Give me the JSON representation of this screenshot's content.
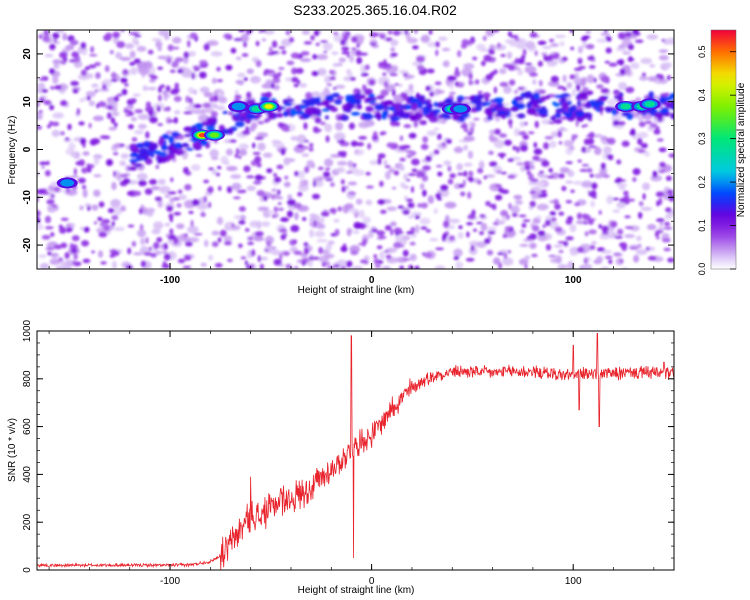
{
  "title": "S233.2025.365.16.04.R02",
  "chart_data": [
    {
      "type": "heatmap",
      "xlabel": "Height of straight line (km)",
      "ylabel": "Frequency (Hz)",
      "xlim": [
        -166,
        150
      ],
      "ylim": [
        -25,
        25
      ],
      "x_ticks": [
        -100,
        0,
        100
      ],
      "y_ticks": [
        -20,
        -10,
        0,
        10,
        20
      ],
      "colorbar": {
        "label": "Normalized spectral amplitude",
        "range": [
          0,
          0.55
        ],
        "ticks": [
          "0.0",
          "0.1",
          "0.2",
          "0.3",
          "0.4",
          "0.5"
        ]
      },
      "ridge": [
        {
          "x": -150,
          "y": -7
        },
        {
          "x": -85,
          "y": 3
        },
        {
          "x": -55,
          "y": 9
        },
        {
          "x": 0,
          "y": 9
        },
        {
          "x": 40,
          "y": 8.5
        },
        {
          "x": 80,
          "y": 9
        },
        {
          "x": 130,
          "y": 9
        }
      ],
      "hotspots": [
        {
          "x": -151,
          "y": -7,
          "v": 0.25
        },
        {
          "x": -84,
          "y": 3,
          "v": 0.52
        },
        {
          "x": -78,
          "y": 3,
          "v": 0.4
        },
        {
          "x": -66,
          "y": 9,
          "v": 0.2
        },
        {
          "x": -57,
          "y": 8.5,
          "v": 0.3
        },
        {
          "x": -51,
          "y": 9,
          "v": 0.45
        },
        {
          "x": 40,
          "y": 8.5,
          "v": 0.32
        },
        {
          "x": 44,
          "y": 8.5,
          "v": 0.25
        },
        {
          "x": 126,
          "y": 9,
          "v": 0.3
        },
        {
          "x": 134,
          "y": 9,
          "v": 0.35
        },
        {
          "x": 138,
          "y": 9.5,
          "v": 0.3
        }
      ]
    },
    {
      "type": "line",
      "xlabel": "Height of straight line (km)",
      "ylabel": "SNR (10 * v/v)",
      "xlim": [
        -166,
        150
      ],
      "ylim": [
        0,
        1000
      ],
      "x_ticks": [
        -100,
        0,
        100
      ],
      "y_ticks": [
        0,
        200,
        400,
        600,
        800,
        1000
      ],
      "series": [
        {
          "color": "#e8232c",
          "x": [
            -166,
            -150,
            -120,
            -100,
            -90,
            -80,
            -75,
            -70,
            -65,
            -60,
            -55,
            -50,
            -45,
            -40,
            -35,
            -30,
            -25,
            -20,
            -15,
            -10,
            -5,
            0,
            5,
            10,
            15,
            20,
            25,
            30,
            40,
            50,
            60,
            70,
            80,
            90,
            100,
            110,
            120,
            130,
            140,
            150
          ],
          "values": [
            20,
            20,
            20,
            20,
            22,
            35,
            60,
            110,
            170,
            230,
            220,
            260,
            290,
            300,
            320,
            350,
            380,
            420,
            460,
            500,
            540,
            560,
            620,
            680,
            720,
            760,
            790,
            810,
            830,
            830,
            825,
            830,
            830,
            820,
            815,
            825,
            820,
            825,
            825,
            820
          ]
        }
      ],
      "spikes": [
        {
          "x": -60,
          "y": 390
        },
        {
          "x": -45,
          "y": 340
        },
        {
          "x": -12,
          "y": 500
        },
        {
          "x": -10,
          "y": 980
        },
        {
          "x": -9,
          "y": 50
        },
        {
          "x": 100,
          "y": 940
        },
        {
          "x": 103,
          "y": 670
        },
        {
          "x": 112,
          "y": 990
        },
        {
          "x": 113,
          "y": 600
        },
        {
          "x": 145,
          "y": 870
        }
      ]
    }
  ]
}
